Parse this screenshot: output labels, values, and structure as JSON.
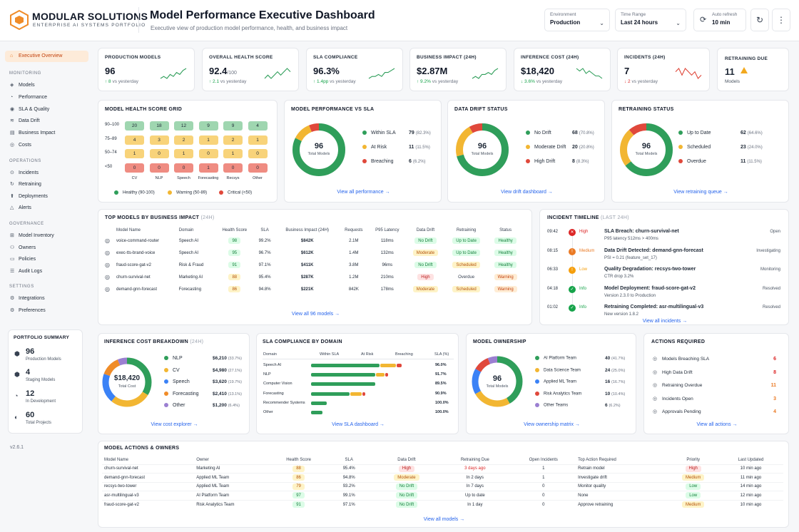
{
  "brand": {
    "name": "MODULAR SOLUTIONS",
    "sub": "ENTERPRISE AI SYSTEMS PORTFOLIO",
    "accent": "#f08c28"
  },
  "page": {
    "title": "Model Performance Executive Dashboard",
    "subtitle": "Executive view of production model performance, health, and business impact"
  },
  "controls": {
    "env_label": "Environment",
    "env_value": "Production",
    "range_label": "Time Range",
    "range_value": "Last 24 hours",
    "refresh_label": "Auto refresh",
    "refresh_value": "10 min"
  },
  "sidebar": {
    "top": [
      {
        "label": "Executive Overview",
        "icon": "home-icon",
        "active": true
      }
    ],
    "monitoring_title": "Monitoring",
    "monitoring": [
      {
        "label": "Models",
        "icon": "cube-icon"
      },
      {
        "label": "Performance",
        "icon": "gauge-icon"
      },
      {
        "label": "SLA & Quality",
        "icon": "shield-icon"
      },
      {
        "label": "Data Drift",
        "icon": "drift-icon"
      },
      {
        "label": "Business Impact",
        "icon": "chart-icon"
      },
      {
        "label": "Costs",
        "icon": "dollar-icon"
      }
    ],
    "operations_title": "Operations",
    "operations": [
      {
        "label": "Incidents",
        "icon": "alert-icon"
      },
      {
        "label": "Retraining",
        "icon": "refresh-icon"
      },
      {
        "label": "Deployments",
        "icon": "rocket-icon"
      },
      {
        "label": "Alerts",
        "icon": "bell-icon"
      }
    ],
    "governance_title": "Governance",
    "governance": [
      {
        "label": "Model Inventory",
        "icon": "list-icon"
      },
      {
        "label": "Owners",
        "icon": "user-icon"
      },
      {
        "label": "Policies",
        "icon": "doc-icon"
      },
      {
        "label": "Audit Logs",
        "icon": "log-icon"
      }
    ],
    "settings_title": "Settings",
    "settings": [
      {
        "label": "Integrations",
        "icon": "plug-icon"
      },
      {
        "label": "Preferences",
        "icon": "gear-icon"
      }
    ],
    "summary_title": "PORTFOLIO SUMMARY",
    "summary": [
      {
        "value": "96",
        "label": "Production Models"
      },
      {
        "value": "4",
        "label": "Staging Models"
      },
      {
        "value": "12",
        "label": "In Development"
      },
      {
        "value": "60",
        "label": "Total Projects"
      }
    ],
    "version": "v2.6.1"
  },
  "kpis": [
    {
      "label": "PRODUCTION MODELS",
      "value": "96",
      "unit": "",
      "delta": "↑ 8",
      "delta_text": "vs yesterday",
      "trend": "up",
      "spark": [
        3,
        4,
        3,
        5,
        4,
        6,
        5,
        7,
        8
      ]
    },
    {
      "label": "OVERALL HEALTH SCORE",
      "value": "92.4",
      "unit": "/100",
      "delta": "↑ 2.1",
      "delta_text": "vs yesterday",
      "trend": "up",
      "spark": [
        4,
        5,
        4,
        5,
        6,
        5,
        6,
        7,
        6
      ]
    },
    {
      "label": "SLA COMPLIANCE",
      "value": "96.3%",
      "unit": "",
      "delta": "↑ 1.4pp",
      "delta_text": "vs yesterday",
      "trend": "up",
      "spark": [
        3,
        4,
        4,
        5,
        4,
        6,
        6,
        7,
        8
      ]
    },
    {
      "label": "BUSINESS IMPACT (24H)",
      "value": "$2.87M",
      "unit": "",
      "delta": "↑ 9.2%",
      "delta_text": "vs yesterday",
      "trend": "up",
      "spark": [
        3,
        4,
        3,
        5,
        5,
        6,
        5,
        7,
        8
      ]
    },
    {
      "label": "INFERENCE COST (24H)",
      "value": "$18,420",
      "unit": "",
      "delta": "↓ 3.6%",
      "delta_text": "vs yesterday",
      "trend": "up",
      "spark": [
        7,
        6,
        7,
        5,
        6,
        5,
        4,
        4,
        3
      ]
    },
    {
      "label": "INCIDENTS (24H)",
      "value": "7",
      "unit": "",
      "delta": "↓ 2",
      "delta_text": "vs yesterday",
      "trend": "down",
      "spark": [
        5,
        6,
        4,
        6,
        5,
        4,
        5,
        3,
        4
      ]
    }
  ],
  "retraining_due": {
    "label": "RETRAINING DUE",
    "value": "11",
    "sub": "Models"
  },
  "health_grid": {
    "title": "MODEL HEALTH SCORE GRID",
    "rows": [
      "90–100",
      "75–89",
      "50–74",
      "<50"
    ],
    "cols": [
      "CV",
      "NLP",
      "Speech",
      "Forecasting",
      "Recsys",
      "Other"
    ],
    "values": [
      [
        20,
        18,
        12,
        9,
        9,
        4
      ],
      [
        4,
        3,
        2,
        1,
        2,
        1
      ],
      [
        1,
        0,
        1,
        0,
        1,
        0
      ],
      [
        0,
        0,
        0,
        1,
        0,
        0
      ]
    ],
    "legend": [
      "Healthy (90-100)",
      "Warning (50-89)",
      "Critical (<50)"
    ],
    "colors": {
      "green": "#9fd6b0",
      "yellow": "#f8d37a",
      "red": "#ef8c82"
    }
  },
  "donuts": [
    {
      "title": "MODEL PERFORMANCE VS SLA",
      "center": "96",
      "center_label": "Total Models",
      "items": [
        {
          "label": "Within SLA",
          "value": "79",
          "pct": "(82.3%)",
          "n": 79,
          "color": "#2f9e5a"
        },
        {
          "label": "At Risk",
          "value": "11",
          "pct": "(11.5%)",
          "n": 11,
          "color": "#f2b632"
        },
        {
          "label": "Breaching",
          "value": "6",
          "pct": "(6.2%)",
          "n": 6,
          "color": "#e0483b"
        }
      ],
      "link": "View all performance  →"
    },
    {
      "title": "DATA DRIFT STATUS",
      "center": "96",
      "center_label": "Total Models",
      "items": [
        {
          "label": "No Drift",
          "value": "68",
          "pct": "(70.8%)",
          "n": 68,
          "color": "#2f9e5a"
        },
        {
          "label": "Moderate Drift",
          "value": "20",
          "pct": "(20.8%)",
          "n": 20,
          "color": "#f2b632"
        },
        {
          "label": "High Drift",
          "value": "8",
          "pct": "(8.3%)",
          "n": 8,
          "color": "#e0483b"
        }
      ],
      "link": "View drift dashboard  →"
    },
    {
      "title": "RETRAINING STATUS",
      "center": "96",
      "center_label": "Total Models",
      "items": [
        {
          "label": "Up to Date",
          "value": "62",
          "pct": "(64.6%)",
          "n": 62,
          "color": "#2f9e5a"
        },
        {
          "label": "Scheduled",
          "value": "23",
          "pct": "(24.0%)",
          "n": 23,
          "color": "#f2b632"
        },
        {
          "label": "Overdue",
          "value": "11",
          "pct": "(11.5%)",
          "n": 11,
          "color": "#e0483b"
        }
      ],
      "link": "View retraining queue  →"
    }
  ],
  "top_models": {
    "title": "TOP MODELS BY BUSINESS IMPACT",
    "title_sub": "(24H)",
    "headers": [
      "Model Name",
      "Domain",
      "Health Score",
      "SLA",
      "Business Impact (24H)",
      "Requests",
      "P95 Latency",
      "Data Drift",
      "Retraining",
      "Status"
    ],
    "rows": [
      [
        "voice-command-router",
        "Speech AI",
        "98",
        "99.2%",
        "$842K",
        "2.1M",
        "118ms",
        "No Drift",
        "Up to Date",
        "Healthy"
      ],
      [
        "exec-tts-brand-voice",
        "Speech AI",
        "95",
        "96.7%",
        "$612K",
        "1.4M",
        "132ms",
        "Moderate",
        "Up to Date",
        "Healthy"
      ],
      [
        "fraud-score-gat-v2",
        "Risk & Fraud",
        "91",
        "97.1%",
        "$411K",
        "3.8M",
        "96ms",
        "No Drift",
        "Scheduled",
        "Healthy"
      ],
      [
        "churn-survival-net",
        "Marketing AI",
        "88",
        "95.4%",
        "$287K",
        "1.2M",
        "210ms",
        "High",
        "Overdue",
        "Warning"
      ],
      [
        "demand-gnn-forecast",
        "Forecasting",
        "86",
        "94.8%",
        "$221K",
        "842K",
        "178ms",
        "Moderate",
        "Scheduled",
        "Warning"
      ]
    ],
    "link": "View all 96 models  →"
  },
  "incidents": {
    "title": "INCIDENT TIMELINE",
    "title_sub": "(LAST 24H)",
    "items": [
      {
        "time": "09:42",
        "sev": "High",
        "title": "SLA Breach: churn-survival-net",
        "detail": "P95 latency 512ms > 400ms",
        "status": "Open"
      },
      {
        "time": "08:15",
        "sev": "Medium",
        "title": "Data Drift Detected: demand-gnn-forecast",
        "detail": "PSI = 0.21 (feature_set_17)",
        "status": "Investigating"
      },
      {
        "time": "06:33",
        "sev": "Low",
        "title": "Quality Degradation: recsys-two-tower",
        "detail": "CTR drop 3.2%",
        "status": "Monitoring"
      },
      {
        "time": "04:18",
        "sev": "Info",
        "title": "Model Deployment: fraud-score-gat-v2",
        "detail": "Version 2.3.0 to Production",
        "status": "Resolved"
      },
      {
        "time": "01:02",
        "sev": "Info",
        "title": "Retraining Completed: asr-multilingual-v3",
        "detail": "New version 1.8.2",
        "status": "Resolved"
      }
    ],
    "link": "View all incidents  →"
  },
  "cost": {
    "title": "INFERENCE COST BREAKDOWN",
    "title_sub": "(24H)",
    "center": "$18,420",
    "center_label": "Total Cost",
    "items": [
      {
        "label": "NLP",
        "value": "$6,210",
        "pct": "(33.7%)",
        "n": 33.7,
        "color": "#2f9e5a"
      },
      {
        "label": "CV",
        "value": "$4,980",
        "pct": "(27.1%)",
        "n": 27.1,
        "color": "#f2b632"
      },
      {
        "label": "Speech",
        "value": "$3,620",
        "pct": "(19.7%)",
        "n": 19.7,
        "color": "#3b82f6"
      },
      {
        "label": "Forecasting",
        "value": "$2,410",
        "pct": "(13.1%)",
        "n": 13.1,
        "color": "#f08c28"
      },
      {
        "label": "Other",
        "value": "$1,200",
        "pct": "(6.4%)",
        "n": 6.4,
        "color": "#9b7fd1"
      }
    ],
    "link": "View cost explorer  →"
  },
  "sla_domain": {
    "title": "SLA COMPLIANCE BY DOMAIN",
    "headers": [
      "Domain",
      "Within SLA",
      "At Risk",
      "Breaching",
      "SLA (%)"
    ],
    "rows": [
      {
        "domain": "Speech AI",
        "within": 30,
        "risk": 7,
        "breach": 2,
        "pct": "96.0%"
      },
      {
        "domain": "NLP",
        "within": 28,
        "risk": 4,
        "breach": 1,
        "pct": "91.7%"
      },
      {
        "domain": "Computer Vision",
        "within": 28,
        "risk": 0,
        "breach": 0,
        "pct": "89.5%"
      },
      {
        "domain": "Forecasting",
        "within": 17,
        "risk": 5,
        "breach": 1,
        "pct": "90.9%"
      },
      {
        "domain": "Recommender Systems",
        "within": 7,
        "risk": 0,
        "breach": 0,
        "pct": "100.0%"
      },
      {
        "domain": "Other",
        "within": 5,
        "risk": 0,
        "breach": 0,
        "pct": "100.0%"
      }
    ],
    "link": "View SLA dashboard  →"
  },
  "ownership": {
    "title": "MODEL OWNERSHIP",
    "center": "96",
    "center_label": "Total Models",
    "items": [
      {
        "label": "AI Platform Team",
        "value": "40",
        "pct": "(41.7%)",
        "n": 40,
        "color": "#2f9e5a"
      },
      {
        "label": "Data Science Team",
        "value": "24",
        "pct": "(25.0%)",
        "n": 24,
        "color": "#f2b632"
      },
      {
        "label": "Applied ML Team",
        "value": "16",
        "pct": "(16.7%)",
        "n": 16,
        "color": "#3b82f6"
      },
      {
        "label": "Risk Analytics Team",
        "value": "10",
        "pct": "(10.4%)",
        "n": 10,
        "color": "#e0483b"
      },
      {
        "label": "Other Teams",
        "value": "6",
        "pct": "(6.2%)",
        "n": 6,
        "color": "#9b7fd1"
      }
    ],
    "link": "View ownership matrix  →"
  },
  "actions": {
    "title": "ACTIONS REQUIRED",
    "items": [
      {
        "label": "Models Breaching SLA",
        "value": "6",
        "color": "#dc2626"
      },
      {
        "label": "High Data Drift",
        "value": "8",
        "color": "#dc2626"
      },
      {
        "label": "Retraining Overdue",
        "value": "11",
        "color": "#ea7a25"
      },
      {
        "label": "Incidents Open",
        "value": "3",
        "color": "#ea7a25"
      },
      {
        "label": "Approvals Pending",
        "value": "4",
        "color": "#ea7a25"
      }
    ],
    "link": "View all actions  →"
  },
  "owners_table": {
    "title": "MODEL ACTIONS & OWNERS",
    "headers": [
      "Model Name",
      "Owner",
      "Health Score",
      "SLA",
      "Data Drift",
      "Retraining Due",
      "Open Incidents",
      "Top Action Required",
      "Priority",
      "Last Updated"
    ],
    "rows": [
      [
        "churn-survival-net",
        "Marketing AI",
        "88",
        "95.4%",
        "High",
        "3 days ago",
        "1",
        "Retrain model",
        "High",
        "10 min ago"
      ],
      [
        "demand-gnn-forecast",
        "Applied ML Team",
        "86",
        "94.8%",
        "Moderate",
        "In 2 days",
        "1",
        "Investigate drift",
        "Medium",
        "11 min ago"
      ],
      [
        "recsys-two-tower",
        "Applied ML Team",
        "79",
        "93.2%",
        "No Drift",
        "In 7 days",
        "0",
        "Monitor quality",
        "Low",
        "14 min ago"
      ],
      [
        "asr-multilingual-v3",
        "AI Platform Team",
        "97",
        "99.1%",
        "No Drift",
        "Up to date",
        "0",
        "None",
        "Low",
        "12 min ago"
      ],
      [
        "fraud-score-gat-v2",
        "Risk Analytics Team",
        "91",
        "97.1%",
        "No Drift",
        "In 1 day",
        "0",
        "Approve retraining",
        "Medium",
        "10 min ago"
      ]
    ],
    "link": "View all models  →"
  }
}
